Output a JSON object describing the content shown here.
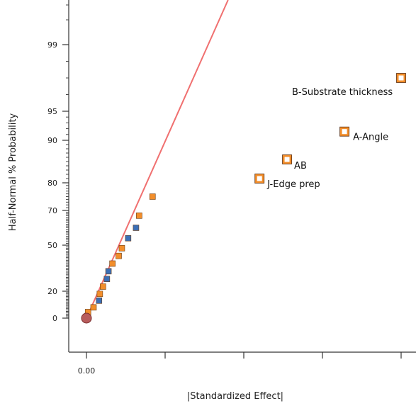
{
  "chart_data": {
    "type": "scatter",
    "title": "",
    "xlabel": "|Standardized Effect|",
    "ylabel": "Half-Normal % Probability",
    "x_tick_labels": [
      {
        "value": 0,
        "label": "0.00"
      }
    ],
    "y_tick_labels": [
      {
        "value": 0,
        "label": "0"
      },
      {
        "value": 20,
        "label": "20"
      },
      {
        "value": 50,
        "label": "50"
      },
      {
        "value": 70,
        "label": "70"
      },
      {
        "value": 80,
        "label": "80"
      },
      {
        "value": 90,
        "label": "90"
      },
      {
        "value": 95,
        "label": "95"
      },
      {
        "value": 99,
        "label": "99"
      }
    ],
    "colors": {
      "positive_effect": "#f28e2b",
      "negative_effect": "#3b6fb6",
      "error_point": "#b85c5c",
      "reference_line": "#f07070",
      "axis": "#333333"
    },
    "reference_line": {
      "x": [
        0,
        1.8
      ],
      "y": [
        0,
        99.9
      ]
    },
    "error_estimate": {
      "x": 0,
      "y": 0
    },
    "effects": [
      {
        "x": 0.01,
        "y": 1.5,
        "sign": "positive"
      },
      {
        "x": 0.02,
        "y": 4.5,
        "sign": "positive"
      },
      {
        "x": 0.09,
        "y": 8,
        "sign": "positive"
      },
      {
        "x": 0.16,
        "y": 13,
        "sign": "negative"
      },
      {
        "x": 0.17,
        "y": 18,
        "sign": "positive"
      },
      {
        "x": 0.21,
        "y": 23,
        "sign": "positive"
      },
      {
        "x": 0.26,
        "y": 28,
        "sign": "negative"
      },
      {
        "x": 0.28,
        "y": 33,
        "sign": "negative"
      },
      {
        "x": 0.33,
        "y": 38,
        "sign": "positive"
      },
      {
        "x": 0.41,
        "y": 43,
        "sign": "positive"
      },
      {
        "x": 0.45,
        "y": 48,
        "sign": "positive"
      },
      {
        "x": 0.53,
        "y": 54,
        "sign": "negative"
      },
      {
        "x": 0.63,
        "y": 60,
        "sign": "negative"
      },
      {
        "x": 0.67,
        "y": 67,
        "sign": "positive"
      },
      {
        "x": 0.84,
        "y": 75,
        "sign": "positive"
      }
    ],
    "labeled_effects": [
      {
        "name": "J-Edge prep",
        "x": 2.2,
        "y": 81,
        "sign": "positive"
      },
      {
        "name": "AB",
        "x": 2.55,
        "y": 85.5,
        "sign": "positive"
      },
      {
        "name": "A-Angle",
        "x": 3.28,
        "y": 91.5,
        "sign": "positive"
      },
      {
        "name": "B-Substrate thickness",
        "x": 4.0,
        "y": 97,
        "sign": "positive"
      }
    ]
  }
}
